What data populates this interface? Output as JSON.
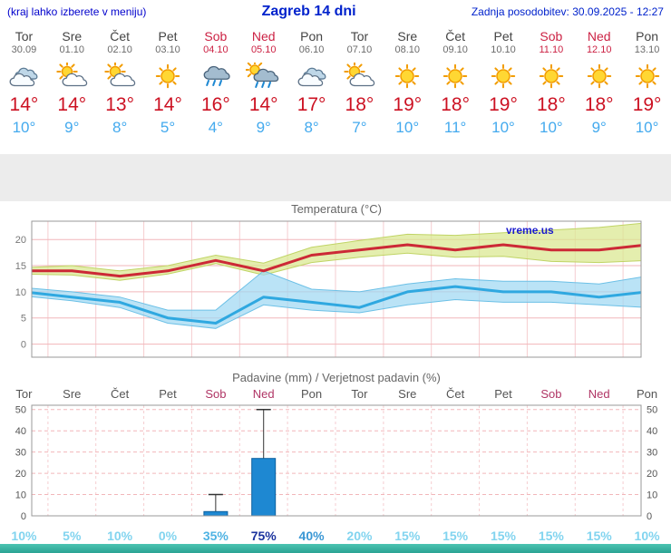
{
  "header": {
    "left_note": "(kraj lahko izberete v meniju)",
    "title": "Zagreb 14 dni",
    "updated": "Zadnja posodobitev: 30.09.2025 - 12:27"
  },
  "colors": {
    "accent_blue": "#0022cc",
    "weekend_red": "#cc2244",
    "tmax_red": "#cc1122",
    "tmin_blue": "#44aaee",
    "bar_blue": "#1e88d2",
    "grid_pink": "#f2b6ba",
    "line_red": "#cc2936",
    "line_blue": "#2fa8e0",
    "band_yellow": "#d9e88f",
    "band_blue": "#a0d8f2",
    "banner_teal": "#35b7a5"
  },
  "days": [
    {
      "name": "Tor",
      "date": "30.09",
      "weekend": false,
      "icon": "cloudy",
      "tmax_label": "14°",
      "tmin_label": "10°"
    },
    {
      "name": "Sre",
      "date": "01.10",
      "weekend": false,
      "icon": "partly-cloudy",
      "tmax_label": "14°",
      "tmin_label": "9°"
    },
    {
      "name": "Čet",
      "date": "02.10",
      "weekend": false,
      "icon": "partly-cloudy",
      "tmax_label": "13°",
      "tmin_label": "8°"
    },
    {
      "name": "Pet",
      "date": "03.10",
      "weekend": false,
      "icon": "sunny",
      "tmax_label": "14°",
      "tmin_label": "5°"
    },
    {
      "name": "Sob",
      "date": "04.10",
      "weekend": true,
      "icon": "rain",
      "tmax_label": "16°",
      "tmin_label": "4°"
    },
    {
      "name": "Ned",
      "date": "05.10",
      "weekend": true,
      "icon": "rain-sun",
      "tmax_label": "14°",
      "tmin_label": "9°"
    },
    {
      "name": "Pon",
      "date": "06.10",
      "weekend": false,
      "icon": "cloudy",
      "tmax_label": "17°",
      "tmin_label": "8°"
    },
    {
      "name": "Tor",
      "date": "07.10",
      "weekend": false,
      "icon": "partly-cloudy",
      "tmax_label": "18°",
      "tmin_label": "7°"
    },
    {
      "name": "Sre",
      "date": "08.10",
      "weekend": false,
      "icon": "sunny",
      "tmax_label": "19°",
      "tmin_label": "10°"
    },
    {
      "name": "Čet",
      "date": "09.10",
      "weekend": false,
      "icon": "sunny",
      "tmax_label": "18°",
      "tmin_label": "11°"
    },
    {
      "name": "Pet",
      "date": "10.10",
      "weekend": false,
      "icon": "sunny",
      "tmax_label": "19°",
      "tmin_label": "10°"
    },
    {
      "name": "Sob",
      "date": "11.10",
      "weekend": true,
      "icon": "sunny",
      "tmax_label": "18°",
      "tmin_label": "10°"
    },
    {
      "name": "Ned",
      "date": "12.10",
      "weekend": true,
      "icon": "sunny",
      "tmax_label": "18°",
      "tmin_label": "9°"
    },
    {
      "name": "Pon",
      "date": "13.10",
      "weekend": false,
      "icon": "sunny",
      "tmax_label": "19°",
      "tmin_label": "10°"
    }
  ],
  "chart_data": [
    {
      "type": "line",
      "title": "Temperatura (°C)",
      "watermark": "vreme.us",
      "categories": [
        "Tor",
        "Sre",
        "Čet",
        "Pet",
        "Sob",
        "Ned",
        "Pon",
        "Tor",
        "Sre",
        "Čet",
        "Pet",
        "Sob",
        "Ned",
        "Pon"
      ],
      "ylim": [
        -2.5,
        23.5
      ],
      "yticks": [
        0,
        5,
        10,
        15,
        20
      ],
      "series": [
        {
          "name": "max_temp",
          "color": "#cc2936",
          "values": [
            14,
            14,
            13,
            14,
            16,
            14,
            17,
            18,
            19,
            18,
            19,
            18,
            18,
            19
          ]
        },
        {
          "name": "min_temp",
          "color": "#2fa8e0",
          "values": [
            10,
            9,
            8,
            5,
            4,
            9,
            8,
            7,
            10,
            11,
            10,
            10,
            9,
            10
          ]
        }
      ],
      "bands": [
        {
          "name": "max_temp_range",
          "color": "#d9e88f",
          "edge": "#c0d465",
          "hi": [
            14.6,
            15,
            14,
            15,
            17,
            15.5,
            18.5,
            19.8,
            21,
            20.8,
            21.3,
            21.8,
            22.3,
            23.2
          ],
          "lo": [
            13.4,
            13.2,
            12.2,
            13.4,
            15.4,
            13.2,
            15.6,
            16.6,
            17.4,
            16.6,
            16.8,
            15.8,
            15.6,
            16
          ]
        },
        {
          "name": "min_temp_range",
          "color": "#a0d8f2",
          "edge": "#6cc0e6",
          "hi": [
            10.8,
            10,
            9,
            6.5,
            6.5,
            14,
            10.5,
            10,
            11.5,
            12.5,
            12,
            12,
            11.5,
            13
          ],
          "lo": [
            9.2,
            8.3,
            7,
            4,
            3,
            7.5,
            6.5,
            6,
            7.5,
            8.5,
            8,
            8,
            7.5,
            7
          ]
        }
      ],
      "grid": true,
      "legend_position": "none"
    },
    {
      "type": "bar",
      "title": "Padavine (mm) / Verjetnost padavin (%)",
      "categories": [
        "Tor",
        "Sre",
        "Čet",
        "Pet",
        "Sob",
        "Ned",
        "Pon",
        "Tor",
        "Sre",
        "Čet",
        "Pet",
        "Sob",
        "Ned",
        "Pon"
      ],
      "weekend_flags": [
        false,
        false,
        false,
        false,
        true,
        true,
        false,
        false,
        false,
        false,
        false,
        true,
        true,
        false
      ],
      "values_mm": [
        0,
        0,
        0,
        0,
        2,
        27,
        0,
        0,
        0,
        0,
        0,
        0,
        0,
        0
      ],
      "whisker_max_mm": [
        0,
        0,
        0,
        0,
        10,
        50,
        0,
        0,
        0,
        0,
        0,
        0,
        0,
        0
      ],
      "probabilities_pct": [
        10,
        5,
        10,
        0,
        35,
        75,
        40,
        20,
        15,
        15,
        15,
        15,
        15,
        10
      ],
      "ylim": [
        0,
        52
      ],
      "yticks": [
        0,
        10,
        20,
        30,
        40,
        50
      ],
      "bar_color": "#1e88d2",
      "grid": true,
      "legend_position": "none"
    }
  ]
}
